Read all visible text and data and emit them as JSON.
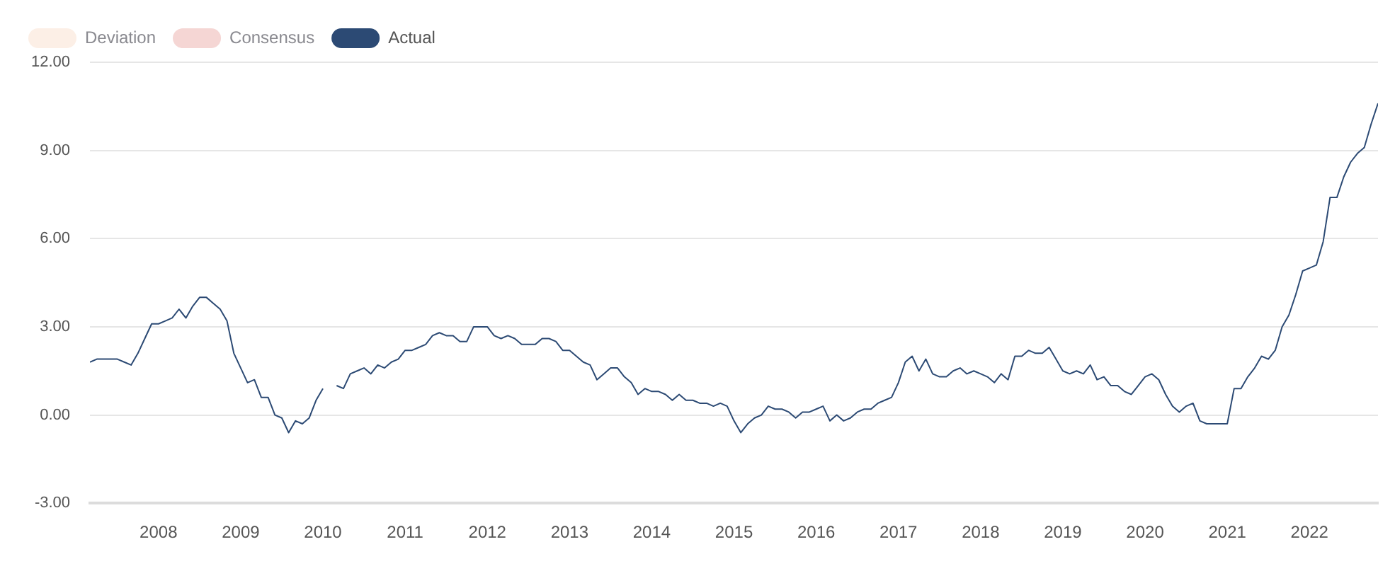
{
  "chart_data": {
    "type": "line",
    "x": [
      "2007-03",
      "2007-04",
      "2007-05",
      "2007-06",
      "2007-07",
      "2007-08",
      "2007-09",
      "2007-10",
      "2007-11",
      "2007-12",
      "2008-01",
      "2008-02",
      "2008-03",
      "2008-04",
      "2008-05",
      "2008-06",
      "2008-07",
      "2008-08",
      "2008-09",
      "2008-10",
      "2008-11",
      "2008-12",
      "2009-01",
      "2009-02",
      "2009-03",
      "2009-04",
      "2009-05",
      "2009-06",
      "2009-07",
      "2009-08",
      "2009-09",
      "2009-10",
      "2009-11",
      "2009-12",
      "2010-01",
      "2010-02",
      "2010-03",
      "2010-04",
      "2010-05",
      "2010-06",
      "2010-07",
      "2010-08",
      "2010-09",
      "2010-10",
      "2010-11",
      "2010-12",
      "2011-01",
      "2011-02",
      "2011-03",
      "2011-04",
      "2011-05",
      "2011-06",
      "2011-07",
      "2011-08",
      "2011-09",
      "2011-10",
      "2011-11",
      "2011-12",
      "2012-01",
      "2012-02",
      "2012-03",
      "2012-04",
      "2012-05",
      "2012-06",
      "2012-07",
      "2012-08",
      "2012-09",
      "2012-10",
      "2012-11",
      "2012-12",
      "2013-01",
      "2013-02",
      "2013-03",
      "2013-04",
      "2013-05",
      "2013-06",
      "2013-07",
      "2013-08",
      "2013-09",
      "2013-10",
      "2013-11",
      "2013-12",
      "2014-01",
      "2014-02",
      "2014-03",
      "2014-04",
      "2014-05",
      "2014-06",
      "2014-07",
      "2014-08",
      "2014-09",
      "2014-10",
      "2014-11",
      "2014-12",
      "2015-01",
      "2015-02",
      "2015-03",
      "2015-04",
      "2015-05",
      "2015-06",
      "2015-07",
      "2015-08",
      "2015-09",
      "2015-10",
      "2015-11",
      "2015-12",
      "2016-01",
      "2016-02",
      "2016-03",
      "2016-04",
      "2016-05",
      "2016-06",
      "2016-07",
      "2016-08",
      "2016-09",
      "2016-10",
      "2016-11",
      "2016-12",
      "2017-01",
      "2017-02",
      "2017-03",
      "2017-04",
      "2017-05",
      "2017-06",
      "2017-07",
      "2017-08",
      "2017-09",
      "2017-10",
      "2017-11",
      "2017-12",
      "2018-01",
      "2018-02",
      "2018-03",
      "2018-04",
      "2018-05",
      "2018-06",
      "2018-07",
      "2018-08",
      "2018-09",
      "2018-10",
      "2018-11",
      "2018-12",
      "2019-01",
      "2019-02",
      "2019-03",
      "2019-04",
      "2019-05",
      "2019-06",
      "2019-07",
      "2019-08",
      "2019-09",
      "2019-10",
      "2019-11",
      "2019-12",
      "2020-01",
      "2020-02",
      "2020-03",
      "2020-04",
      "2020-05",
      "2020-06",
      "2020-07",
      "2020-08",
      "2020-09",
      "2020-10",
      "2020-11",
      "2020-12",
      "2021-01",
      "2021-02",
      "2021-03",
      "2021-04",
      "2021-05",
      "2021-06",
      "2021-07",
      "2021-08",
      "2021-09",
      "2021-10",
      "2021-11",
      "2021-12",
      "2022-01",
      "2022-02",
      "2022-03",
      "2022-04",
      "2022-05",
      "2022-06",
      "2022-07",
      "2022-08",
      "2022-09",
      "2022-10",
      "2022-11"
    ],
    "series": [
      {
        "name": "Deviation",
        "color": "#fcefe6",
        "values": [
          null,
          null,
          null,
          null,
          null,
          null,
          null,
          null,
          null,
          null,
          null,
          null,
          null,
          null,
          null,
          null,
          null,
          null,
          null,
          null,
          null,
          null,
          null,
          null,
          null,
          null,
          null,
          null,
          null,
          null,
          null,
          null,
          null,
          null,
          null,
          null,
          null,
          null,
          null,
          null,
          null,
          null,
          null,
          null,
          null,
          null,
          null,
          null,
          null,
          null,
          null,
          null,
          null,
          null,
          null,
          null,
          null,
          null,
          null,
          null,
          null,
          null,
          null,
          null,
          null,
          null,
          null,
          null,
          null,
          null,
          null,
          null,
          null,
          null,
          null,
          null,
          null,
          null,
          null,
          null,
          null,
          null,
          null,
          null,
          null,
          null,
          null,
          null,
          null,
          null,
          null,
          null,
          null,
          null,
          null,
          null,
          null,
          null,
          null,
          null,
          null,
          null,
          null,
          null,
          null,
          null,
          null,
          null,
          null,
          null,
          null,
          null,
          null,
          null,
          null,
          null,
          null,
          null,
          null,
          null,
          null,
          null,
          null,
          null,
          null,
          null,
          null,
          null,
          null,
          null,
          null,
          null,
          null,
          null,
          null,
          null,
          null,
          null,
          null,
          null,
          null,
          null,
          null,
          null,
          null,
          null,
          null,
          null,
          null,
          null,
          null,
          null,
          null,
          null,
          null,
          null,
          null,
          null,
          null,
          null,
          null,
          null,
          null,
          null,
          null,
          null,
          null,
          null,
          null,
          null,
          null,
          null,
          null,
          null,
          null,
          null,
          null,
          null,
          null,
          null,
          null,
          null,
          null,
          null,
          null,
          null,
          null,
          null,
          null
        ]
      },
      {
        "name": "Consensus",
        "color": "#f5d6d4",
        "values": [
          null,
          null,
          null,
          null,
          null,
          null,
          null,
          null,
          null,
          null,
          null,
          null,
          null,
          null,
          null,
          null,
          null,
          null,
          null,
          null,
          null,
          null,
          null,
          null,
          null,
          null,
          null,
          null,
          null,
          null,
          null,
          null,
          null,
          null,
          null,
          null,
          null,
          null,
          null,
          null,
          null,
          null,
          null,
          null,
          null,
          null,
          null,
          null,
          null,
          null,
          null,
          null,
          null,
          null,
          null,
          null,
          null,
          null,
          null,
          null,
          null,
          null,
          null,
          null,
          null,
          null,
          null,
          null,
          null,
          null,
          null,
          null,
          null,
          null,
          null,
          null,
          null,
          null,
          null,
          null,
          null,
          null,
          null,
          null,
          null,
          null,
          null,
          null,
          null,
          null,
          null,
          null,
          null,
          null,
          null,
          null,
          null,
          null,
          null,
          null,
          null,
          null,
          null,
          null,
          null,
          null,
          null,
          null,
          null,
          null,
          null,
          null,
          null,
          null,
          null,
          null,
          null,
          null,
          null,
          null,
          null,
          null,
          null,
          null,
          null,
          null,
          null,
          null,
          null,
          null,
          null,
          null,
          null,
          null,
          null,
          null,
          null,
          null,
          null,
          null,
          null,
          null,
          null,
          null,
          null,
          null,
          null,
          null,
          null,
          null,
          null,
          null,
          null,
          null,
          null,
          null,
          null,
          null,
          null,
          null,
          null,
          null,
          null,
          null,
          null,
          null,
          null,
          null,
          null,
          null,
          null,
          null,
          null,
          null,
          null,
          null,
          null,
          null,
          null,
          null,
          null,
          null,
          null,
          null,
          null,
          null,
          null,
          null,
          null
        ]
      },
      {
        "name": "Actual",
        "color": "#2c4a74",
        "values": [
          1.8,
          1.9,
          1.9,
          1.9,
          1.9,
          1.8,
          1.7,
          2.1,
          2.6,
          3.1,
          3.1,
          3.2,
          3.3,
          3.6,
          3.3,
          3.7,
          4.0,
          4.0,
          3.8,
          3.6,
          3.2,
          2.1,
          1.6,
          1.1,
          1.2,
          0.6,
          0.6,
          0.0,
          -0.1,
          -0.6,
          -0.2,
          -0.3,
          -0.1,
          0.5,
          0.9,
          null,
          1.0,
          0.9,
          1.4,
          1.5,
          1.6,
          1.4,
          1.7,
          1.6,
          1.8,
          1.9,
          2.2,
          2.2,
          2.3,
          2.4,
          2.7,
          2.8,
          2.7,
          2.7,
          2.5,
          2.5,
          3.0,
          3.0,
          3.0,
          2.7,
          2.6,
          2.7,
          2.6,
          2.4,
          2.4,
          2.4,
          2.6,
          2.6,
          2.5,
          2.2,
          2.2,
          2.0,
          1.8,
          1.7,
          1.2,
          1.4,
          1.6,
          1.6,
          1.3,
          1.1,
          0.7,
          0.9,
          0.8,
          0.8,
          0.7,
          0.5,
          0.7,
          0.5,
          0.5,
          0.4,
          0.4,
          0.3,
          0.4,
          0.3,
          -0.2,
          -0.6,
          -0.3,
          -0.1,
          0.0,
          0.3,
          0.2,
          0.2,
          0.1,
          -0.1,
          0.1,
          0.1,
          0.2,
          0.3,
          -0.2,
          0.0,
          -0.2,
          -0.1,
          0.1,
          0.2,
          0.2,
          0.4,
          0.5,
          0.6,
          1.1,
          1.8,
          2.0,
          1.5,
          1.9,
          1.4,
          1.3,
          1.3,
          1.5,
          1.6,
          1.4,
          1.5,
          1.4,
          1.3,
          1.1,
          1.4,
          1.2,
          2.0,
          2.0,
          2.2,
          2.1,
          2.1,
          2.3,
          1.9,
          1.5,
          1.4,
          1.5,
          1.4,
          1.7,
          1.2,
          1.3,
          1.0,
          1.0,
          0.8,
          0.7,
          1.0,
          1.3,
          1.4,
          1.2,
          0.7,
          0.3,
          0.1,
          0.3,
          0.4,
          -0.2,
          -0.3,
          -0.3,
          -0.3,
          -0.3,
          0.9,
          0.9,
          1.3,
          1.6,
          2.0,
          1.9,
          2.2,
          3.0,
          3.4,
          4.1,
          4.9,
          5.0,
          5.1,
          5.9,
          7.4,
          7.4,
          8.1,
          8.6,
          8.9,
          9.1,
          9.9,
          10.6
        ]
      }
    ],
    "xlim": [
      "2007-03",
      "2022-11"
    ],
    "xticks": [
      "2008",
      "2009",
      "2010",
      "2011",
      "2012",
      "2013",
      "2014",
      "2015",
      "2016",
      "2017",
      "2018",
      "2019",
      "2020",
      "2021",
      "2022"
    ],
    "ylim": [
      -3,
      12
    ],
    "yticks": [
      {
        "value": -3,
        "label": "-3.00"
      },
      {
        "value": 0,
        "label": "0.00"
      },
      {
        "value": 3,
        "label": "3.00"
      },
      {
        "value": 6,
        "label": "6.00"
      },
      {
        "value": 9,
        "label": "9.00"
      },
      {
        "value": 12,
        "label": "12.00"
      }
    ],
    "grid": "y",
    "legend": "top left",
    "marker": "none",
    "line_style": "solid"
  }
}
